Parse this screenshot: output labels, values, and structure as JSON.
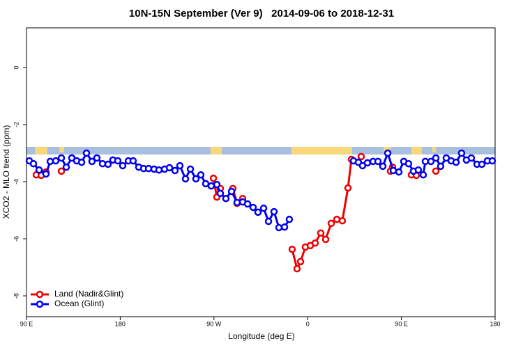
{
  "chart_data": {
    "type": "line",
    "title": "10N-15N September (Ver 9)   2014-09-06 to 2018-12-31",
    "x_label": "Longitude (deg E)",
    "y_label": "XCO2 - MLO trend (ppm)",
    "xlim": [
      90,
      540
    ],
    "ylim": [
      -8.73,
      1.39
    ],
    "xticks": [
      {
        "value": 90,
        "label": "90 E"
      },
      180,
      {
        "value": 270,
        "label": "90 W"
      },
      {
        "value": 360,
        "label": "0"
      },
      {
        "value": 450,
        "label": "90 E"
      },
      {
        "value": 540,
        "label": "180"
      }
    ],
    "yticks": [
      0,
      -2,
      -4,
      -6,
      -8
    ],
    "legend": "bottom-left",
    "series": [
      {
        "name": "Land (Nadir&Glint)",
        "color": "#ee0000",
        "x": [
          99.4,
          104.1,
          null,
          108.7,
          null,
          123.5,
          null,
          269.5,
          272.8,
          276.1,
          null,
          288.2,
          292.2,
          297.6,
          null,
          345.1,
          349.8,
          353.2,
          357.8,
          362.5,
          367.2,
          372.6,
          377.3,
          382.6,
          388.0,
          393.3,
          398.7,
          402.0,
          null,
          411.4,
          null,
          439.5,
          441.5,
          null,
          459.6,
          464.3,
          null,
          483.1
        ],
        "values": [
          -3.76,
          -3.78,
          null,
          -3.66,
          null,
          -3.63,
          null,
          -3.88,
          -4.54,
          -4.24,
          null,
          -4.24,
          -4.76,
          -4.59,
          null,
          -6.37,
          -7.05,
          -6.8,
          -6.29,
          -6.24,
          -6.15,
          -5.8,
          -6.02,
          -5.46,
          -5.32,
          -5.37,
          -4.22,
          -3.22,
          null,
          -3.12,
          null,
          -3.63,
          -3.49,
          null,
          -3.76,
          -3.78,
          null,
          -3.63
        ]
      },
      {
        "name": "Ocean (Glint)",
        "color": "#0000ee",
        "x": [
          92.7,
          96.7,
          102.1,
          108.7,
          112.8,
          118.1,
          123.5,
          128.2,
          133.5,
          138.2,
          142.9,
          147.6,
          152.9,
          157.6,
          163.0,
          168.3,
          173.0,
          177.7,
          182.4,
          187.8,
          192.4,
          197.8,
          202.5,
          207.2,
          212.5,
          217.2,
          222.6,
          227.3,
          232.6,
          237.3,
          242.7,
          247.4,
          252.7,
          257.4,
          262.1,
          267.4,
          272.8,
          276.1,
          281.5,
          286.9,
          292.2,
          297.6,
          302.3,
          307.6,
          312.3,
          317.7,
          322.4,
          327.7,
          332.4,
          337.8,
          342.4,
          null,
          404.0,
          408.7,
          412.7,
          417.4,
          422.8,
          427.5,
          432.2,
          436.9,
          442.2,
          447.6,
          452.3,
          456.9,
          461.6,
          466.3,
          471.0,
          473.0,
          478.4,
          483.1,
          487.7,
          493.1,
          497.8,
          502.5,
          507.8,
          512.5,
          517.2,
          522.6,
          527.3,
          532.6,
          537.3
        ],
        "values": [
          -3.27,
          -3.37,
          -3.59,
          -3.73,
          -3.29,
          -3.27,
          -3.17,
          -3.49,
          -3.17,
          -3.27,
          -3.32,
          -3.0,
          -3.29,
          -3.17,
          -3.37,
          -3.39,
          -3.24,
          -3.27,
          -3.44,
          -3.27,
          -3.27,
          -3.49,
          -3.54,
          -3.54,
          -3.56,
          -3.59,
          -3.56,
          -3.51,
          -3.61,
          -3.44,
          -3.9,
          -3.56,
          -3.9,
          -3.76,
          -4.07,
          -4.15,
          -4.1,
          -4.41,
          -4.59,
          -4.34,
          -4.73,
          -4.71,
          -4.78,
          -4.9,
          -5.07,
          -4.93,
          -5.39,
          -5.05,
          -5.61,
          -5.59,
          -5.32,
          null,
          -3.27,
          -3.32,
          -3.44,
          -3.34,
          -3.29,
          -3.29,
          -3.46,
          -3.0,
          -3.61,
          -3.66,
          -3.29,
          -3.37,
          -3.63,
          -3.59,
          -3.76,
          -3.29,
          -3.29,
          -3.17,
          -3.46,
          -3.17,
          -3.27,
          -3.32,
          -3.0,
          -3.24,
          -3.17,
          -3.39,
          -3.39,
          -3.27,
          -3.27
        ]
      }
    ]
  }
}
